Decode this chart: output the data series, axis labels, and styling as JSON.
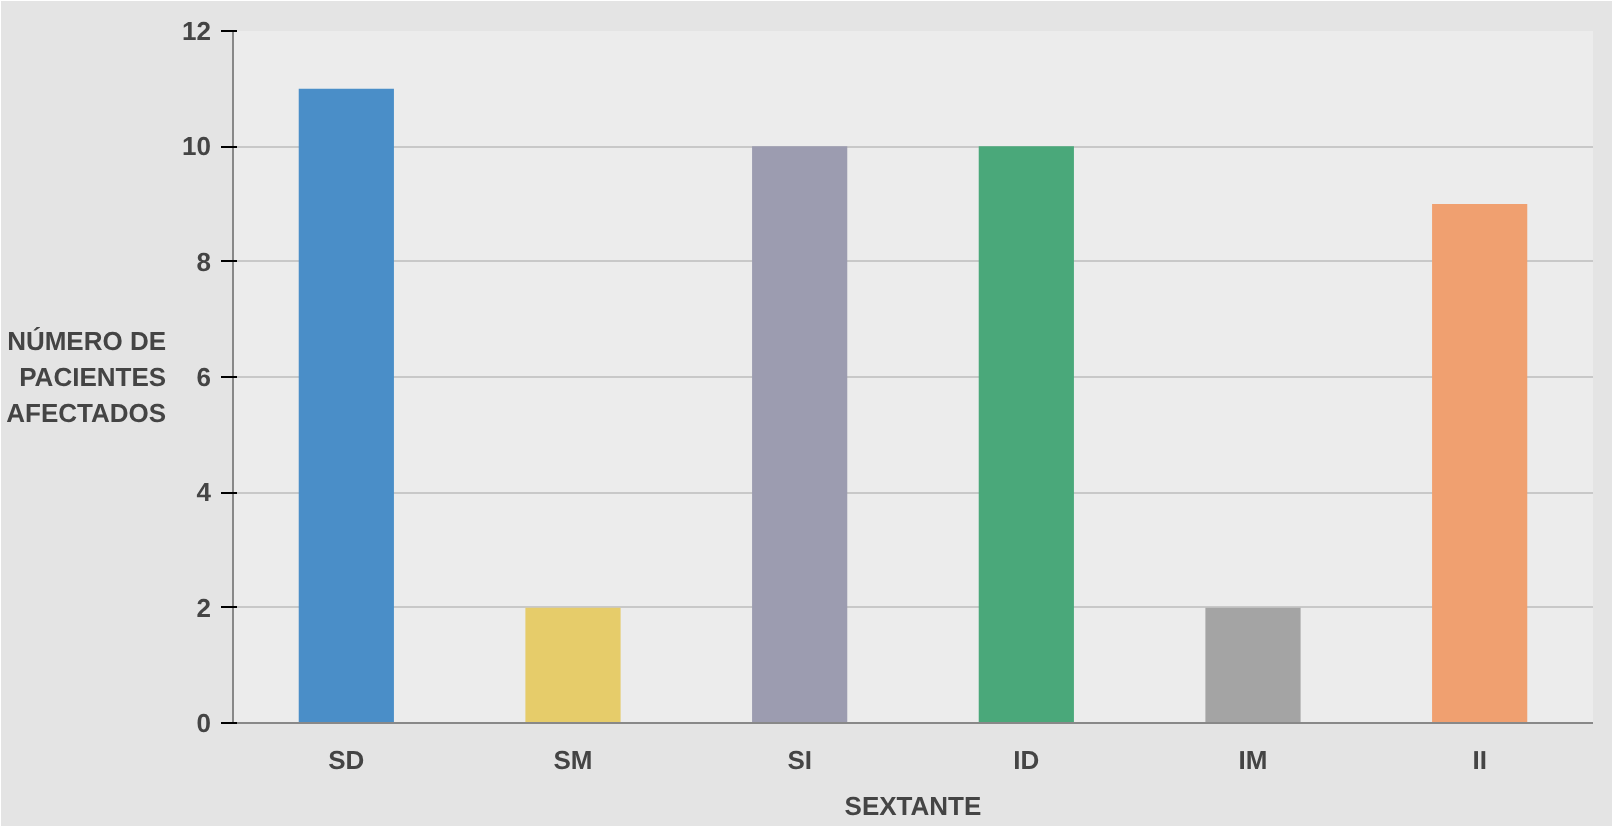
{
  "chart_data": {
    "type": "bar",
    "xlabel": "SEXTANTE",
    "ylabel": "NÚMERO DE PACIENTES AFECTADOS",
    "categories": [
      "SD",
      "SM",
      "SI",
      "ID",
      "IM",
      "II"
    ],
    "values": [
      11,
      2,
      10,
      10,
      2,
      9
    ],
    "colors": [
      "#4a8ec8",
      "#e6cc6a",
      "#9c9cb0",
      "#4aa87a",
      "#a4a4a4",
      "#f0a070"
    ],
    "ylim": [
      0,
      12
    ],
    "yticks": [
      0,
      2,
      4,
      6,
      8,
      10,
      12
    ],
    "grid": "y"
  }
}
